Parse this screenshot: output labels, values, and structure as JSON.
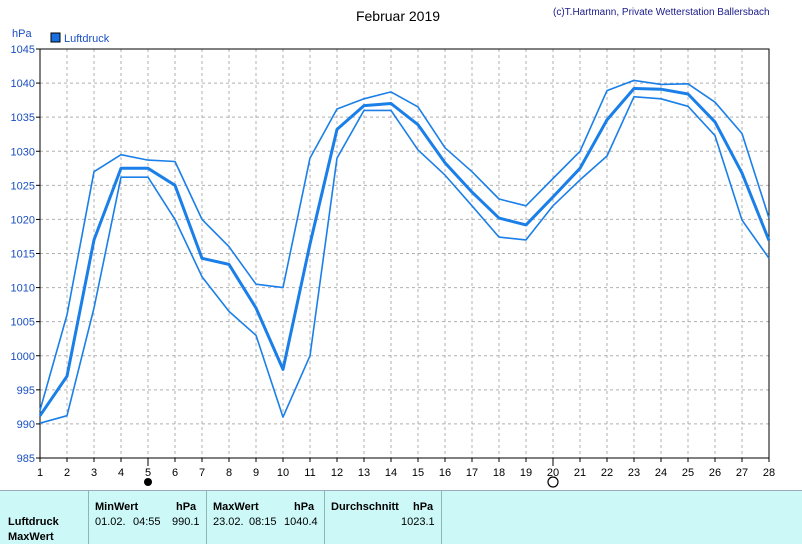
{
  "header": {
    "title": "Februar 2019",
    "copyright": "(c)T.Hartmann, Private Wetterstation Ballersbach"
  },
  "legend": {
    "label": "Luftdruck",
    "swatch_color": "#1a6fe0"
  },
  "colors": {
    "line": "#1a7fe8",
    "grid": "#b0b0b0",
    "stats_bg": "#ccf8f8"
  },
  "moon_phases": [
    {
      "day": 5,
      "phase": "new-moon"
    },
    {
      "day": 20,
      "phase": "full-moon"
    }
  ],
  "chart_data": {
    "type": "line",
    "title": "Februar 2019",
    "ylabel": "hPa",
    "xlabel": "",
    "ylim": [
      985,
      1045
    ],
    "y_ticks": [
      985,
      990,
      995,
      1000,
      1005,
      1010,
      1015,
      1020,
      1025,
      1030,
      1035,
      1040,
      1045
    ],
    "x_ticks": [
      1,
      2,
      3,
      4,
      5,
      6,
      7,
      8,
      9,
      10,
      11,
      12,
      13,
      14,
      15,
      16,
      17,
      18,
      19,
      20,
      21,
      22,
      23,
      24,
      25,
      26,
      27,
      28
    ],
    "grid": true,
    "legend_position": "top-left",
    "series": [
      {
        "name": "Luftdruck",
        "role": "max",
        "x": [
          1,
          2,
          3,
          4,
          5,
          6,
          7,
          8,
          9,
          10,
          11,
          12,
          13,
          14,
          15,
          16,
          17,
          18,
          19,
          20,
          21,
          22,
          23,
          24,
          25,
          26,
          27,
          28
        ],
        "values": [
          992,
          1006,
          1027,
          1029.5,
          1028.7,
          1028.5,
          1020,
          1016,
          1010.5,
          1010,
          1029,
          1036.2,
          1037.7,
          1038.7,
          1036.5,
          1030.5,
          1027,
          1023,
          1022,
          1026,
          1030,
          1038.9,
          1040.4,
          1039.8,
          1039.9,
          1037.2,
          1032.6,
          1020.2
        ]
      },
      {
        "name": "Luftdruck",
        "role": "mean",
        "x": [
          1,
          2,
          3,
          4,
          5,
          6,
          7,
          8,
          9,
          10,
          11,
          12,
          13,
          14,
          15,
          16,
          17,
          18,
          19,
          20,
          21,
          22,
          23,
          24,
          25,
          26,
          27,
          28
        ],
        "values": [
          991.2,
          997,
          1017,
          1027.5,
          1027.5,
          1025,
          1014.3,
          1013.4,
          1007,
          998,
          1016.4,
          1033.2,
          1036.7,
          1037,
          1033.9,
          1028.3,
          1024,
          1020.2,
          1019.2,
          1023.3,
          1027.5,
          1034.6,
          1039.2,
          1039.1,
          1038.4,
          1034.3,
          1026.8,
          1016.9
        ]
      },
      {
        "name": "Luftdruck",
        "role": "min",
        "x": [
          1,
          2,
          3,
          4,
          5,
          6,
          7,
          8,
          9,
          10,
          11,
          12,
          13,
          14,
          15,
          16,
          17,
          18,
          19,
          20,
          21,
          22,
          23,
          24,
          25,
          26,
          27,
          28
        ],
        "values": [
          990.1,
          991.2,
          1007,
          1026.2,
          1026.2,
          1020,
          1011.6,
          1006.5,
          1003,
          991,
          1000,
          1029,
          1036,
          1036,
          1030.2,
          1026.5,
          1022,
          1017.4,
          1017,
          1022,
          1025.8,
          1029.3,
          1038,
          1037.7,
          1036.6,
          1032.3,
          1019.9,
          1014.3
        ]
      }
    ]
  },
  "stats": {
    "row_label": "Luftdruck",
    "row_label_2": "MaxWert",
    "min_header": "MinWert",
    "unit": "hPa",
    "min_date": "01.02.",
    "min_time": "04:55",
    "min_value": "990.1",
    "max_header": "MaxWert",
    "max_date": "23.02.",
    "max_time": "08:15",
    "max_value": "1040.4",
    "avg_header": "Durchschnitt",
    "avg_value": "1023.1"
  }
}
